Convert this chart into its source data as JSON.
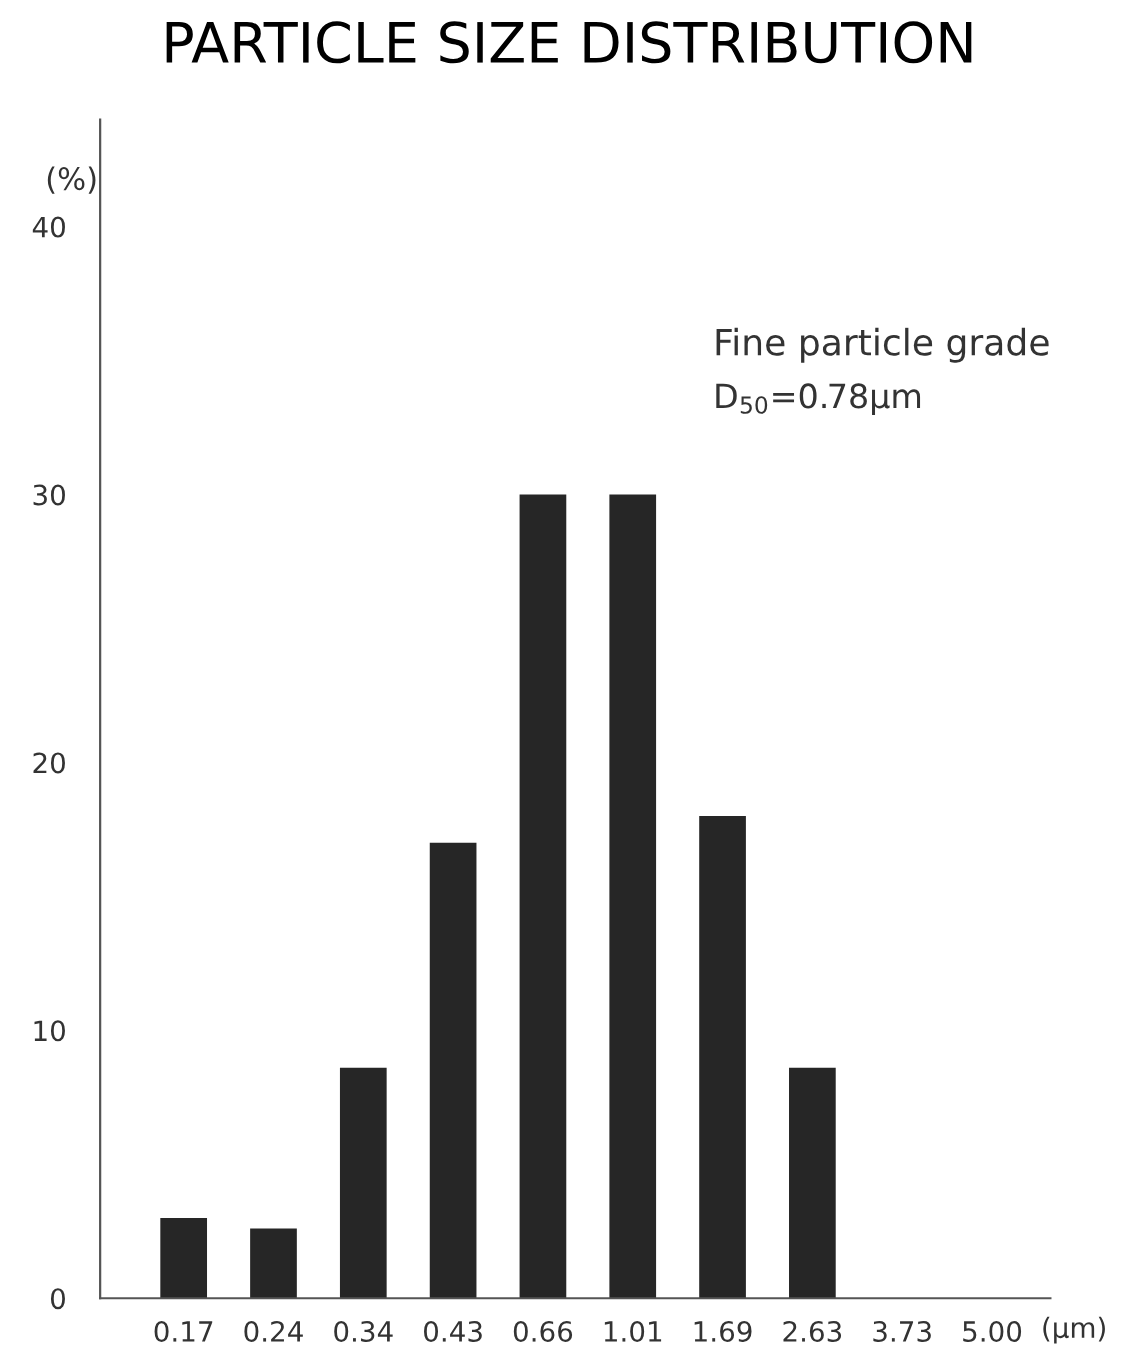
{
  "chart_data": {
    "type": "bar",
    "title": "PARTICLE SIZE DISTRIBUTION",
    "categories": [
      "0.17",
      "0.24",
      "0.34",
      "0.43",
      "0.66",
      "1.01",
      "1.69",
      "2.63",
      "3.73",
      "5.00"
    ],
    "values": [
      3.0,
      2.6,
      8.6,
      17.0,
      30.0,
      30.0,
      18.0,
      8.6,
      0,
      0
    ],
    "color": "#262626",
    "xlabel": "(μm)",
    "ylabel": "(%)",
    "ylim": [
      0,
      44
    ],
    "yticks": [
      0,
      10,
      20,
      30,
      40
    ],
    "annotations": [
      "Fine particle grade",
      "D$_{50}$=0.78μm"
    ],
    "grid": false,
    "legend": false
  }
}
